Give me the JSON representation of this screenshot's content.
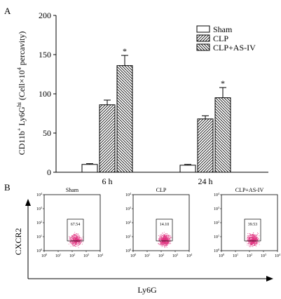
{
  "chart_data": [
    {
      "panel": "A",
      "type": "bar",
      "categories": [
        "6 h",
        "24 h"
      ],
      "series": [
        {
          "name": "Sham",
          "values": [
            10,
            9
          ],
          "errors": [
            1,
            1
          ],
          "pattern": "none"
        },
        {
          "name": "CLP",
          "values": [
            86,
            68
          ],
          "errors": [
            6,
            4
          ],
          "pattern": "hatch-forward"
        },
        {
          "name": "CLP+AS-IV",
          "values": [
            136,
            95
          ],
          "errors": [
            13,
            13
          ],
          "pattern": "hatch-back"
        }
      ],
      "significance": [
        "",
        "",
        "*"
      ],
      "ylabel_main": "CD11b",
      "ylabel_sup1": "+",
      "ylabel_mid": " Ly6G",
      "ylabel_sup2": "hi",
      "ylabel_paren_a": " (Cell×10",
      "ylabel_sup3": "4",
      "ylabel_paren_b": " percavity)",
      "ylim": [
        0,
        200
      ],
      "yticks": [
        "0",
        "50",
        "100",
        "150",
        "200"
      ],
      "legend_position": "top-right"
    },
    {
      "panel": "B",
      "type": "scatter",
      "ylabel": "CXCR2",
      "xlabel": "Ly6G",
      "scale": "log",
      "tick_base": "10",
      "tick_exponents": [
        "0",
        "1",
        "2",
        "3",
        "4"
      ],
      "color": "#e0317f",
      "plots": [
        {
          "title": "Sham",
          "gate_value": "67.54",
          "density": 0.75
        },
        {
          "title": "CLP",
          "gate_value": "14.10",
          "density": 1.0
        },
        {
          "title": "CLP+AS-IV",
          "gate_value": "39.53",
          "density": 0.9
        }
      ]
    }
  ],
  "panel_labels": {
    "a": "A",
    "b": "B"
  }
}
